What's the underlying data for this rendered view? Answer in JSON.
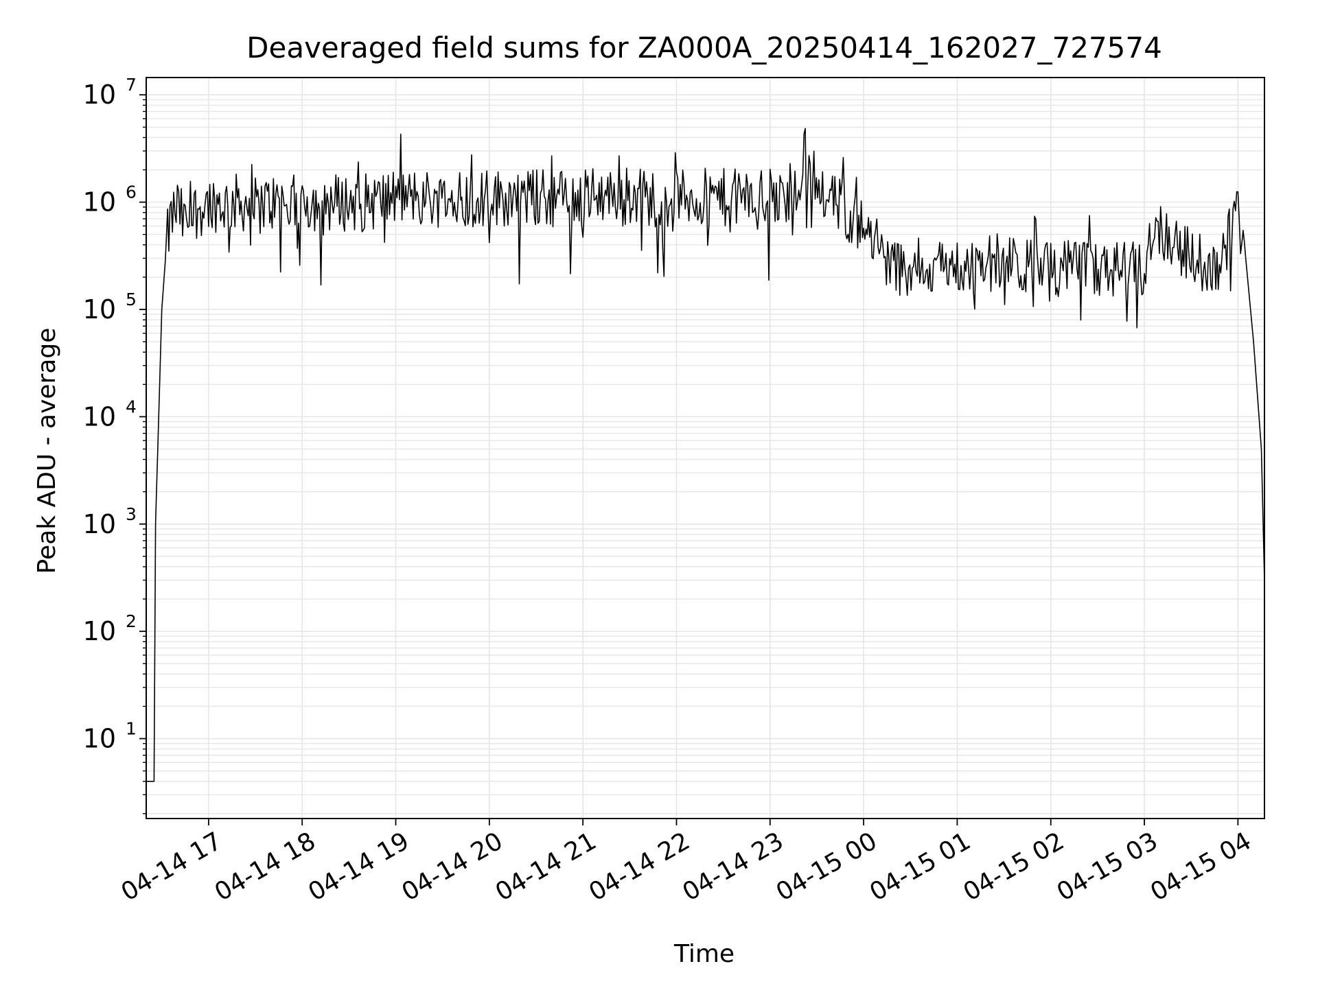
{
  "chart_data": {
    "type": "line",
    "title": "Deaveraged field sums for ZA000A_20250414_162027_727574",
    "xlabel": "Time",
    "ylabel": "Peak ADU - average",
    "yscale": "log",
    "grid": true,
    "line_color": "#000000",
    "grid_color": "#e6e6e6",
    "xlim": [
      "2025-04-14 16:20",
      "2025-04-15 04:17"
    ],
    "ylim": [
      1.8,
      14500000
    ],
    "x_ticks": [
      {
        "value": "2025-04-14 17:00",
        "label": "04-14 17"
      },
      {
        "value": "2025-04-14 18:00",
        "label": "04-14 18"
      },
      {
        "value": "2025-04-14 19:00",
        "label": "04-14 19"
      },
      {
        "value": "2025-04-14 20:00",
        "label": "04-14 20"
      },
      {
        "value": "2025-04-14 21:00",
        "label": "04-14 21"
      },
      {
        "value": "2025-04-14 22:00",
        "label": "04-14 22"
      },
      {
        "value": "2025-04-14 23:00",
        "label": "04-14 23"
      },
      {
        "value": "2025-04-15 00:00",
        "label": "04-15 00"
      },
      {
        "value": "2025-04-15 01:00",
        "label": "04-15 01"
      },
      {
        "value": "2025-04-15 02:00",
        "label": "04-15 02"
      },
      {
        "value": "2025-04-15 03:00",
        "label": "04-15 03"
      },
      {
        "value": "2025-04-15 04:00",
        "label": "04-15 04"
      }
    ],
    "y_ticks": [
      {
        "value": 10,
        "base": "10",
        "exp": "1"
      },
      {
        "value": 100,
        "base": "10",
        "exp": "2"
      },
      {
        "value": 1000,
        "base": "10",
        "exp": "3"
      },
      {
        "value": 10000,
        "base": "10",
        "exp": "4"
      },
      {
        "value": 100000,
        "base": "10",
        "exp": "5"
      },
      {
        "value": 1000000,
        "base": "10",
        "exp": "6"
      },
      {
        "value": 10000000,
        "base": "10",
        "exp": "7"
      }
    ],
    "series": [
      {
        "x": [
          "2025-04-14 16:20",
          "2025-04-14 16:25",
          "2025-04-14 16:26",
          "2025-04-14 16:28",
          "2025-04-14 16:30",
          "2025-04-14 16:33",
          "2025-04-14 16:36",
          "2025-04-14 16:40",
          "2025-04-14 16:45",
          "2025-04-14 16:50",
          "2025-04-14 17:00",
          "2025-04-14 17:10",
          "2025-04-14 17:20",
          "2025-04-14 17:30",
          "2025-04-14 17:40",
          "2025-04-14 17:50",
          "2025-04-14 18:00",
          "2025-04-14 18:20",
          "2025-04-14 18:40",
          "2025-04-14 19:00",
          "2025-04-14 19:20",
          "2025-04-14 19:40",
          "2025-04-14 19:41",
          "2025-04-14 19:43",
          "2025-04-14 20:00",
          "2025-04-14 20:20",
          "2025-04-14 20:40",
          "2025-04-14 21:00",
          "2025-04-14 21:20",
          "2025-04-14 21:40",
          "2025-04-14 22:00",
          "2025-04-14 22:20",
          "2025-04-14 22:40",
          "2025-04-14 23:00",
          "2025-04-14 23:20",
          "2025-04-14 23:21",
          "2025-04-14 23:40",
          "2025-04-14 23:50",
          "2025-04-15 00:00",
          "2025-04-15 00:10",
          "2025-04-15 00:20",
          "2025-04-15 00:40",
          "2025-04-15 01:00",
          "2025-04-15 01:20",
          "2025-04-15 01:40",
          "2025-04-15 02:00",
          "2025-04-15 02:20",
          "2025-04-15 02:40",
          "2025-04-15 03:00",
          "2025-04-15 03:05",
          "2025-04-15 03:15",
          "2025-04-15 03:30",
          "2025-04-15 03:45",
          "2025-04-15 04:00",
          "2025-04-15 04:05",
          "2025-04-15 04:10",
          "2025-04-15 04:15",
          "2025-04-15 04:17"
        ],
        "y": [
          4,
          4,
          1000,
          10000,
          100000,
          400000,
          700000,
          900000,
          600000,
          800000,
          1000000,
          950000,
          1000000,
          900000,
          1000000,
          950000,
          1000000,
          1000000,
          1000000,
          1100000,
          1100000,
          1000000,
          6500000,
          1100000,
          1100000,
          1100000,
          1100000,
          1100000,
          1200000,
          1100000,
          1100000,
          1100000,
          1100000,
          1100000,
          1100000,
          3000000,
          1000000,
          800000,
          600000,
          350000,
          250000,
          250000,
          250000,
          280000,
          250000,
          250000,
          230000,
          230000,
          230000,
          600000,
          500000,
          300000,
          250000,
          700000,
          300000,
          50000,
          5000,
          300
        ]
      }
    ]
  }
}
